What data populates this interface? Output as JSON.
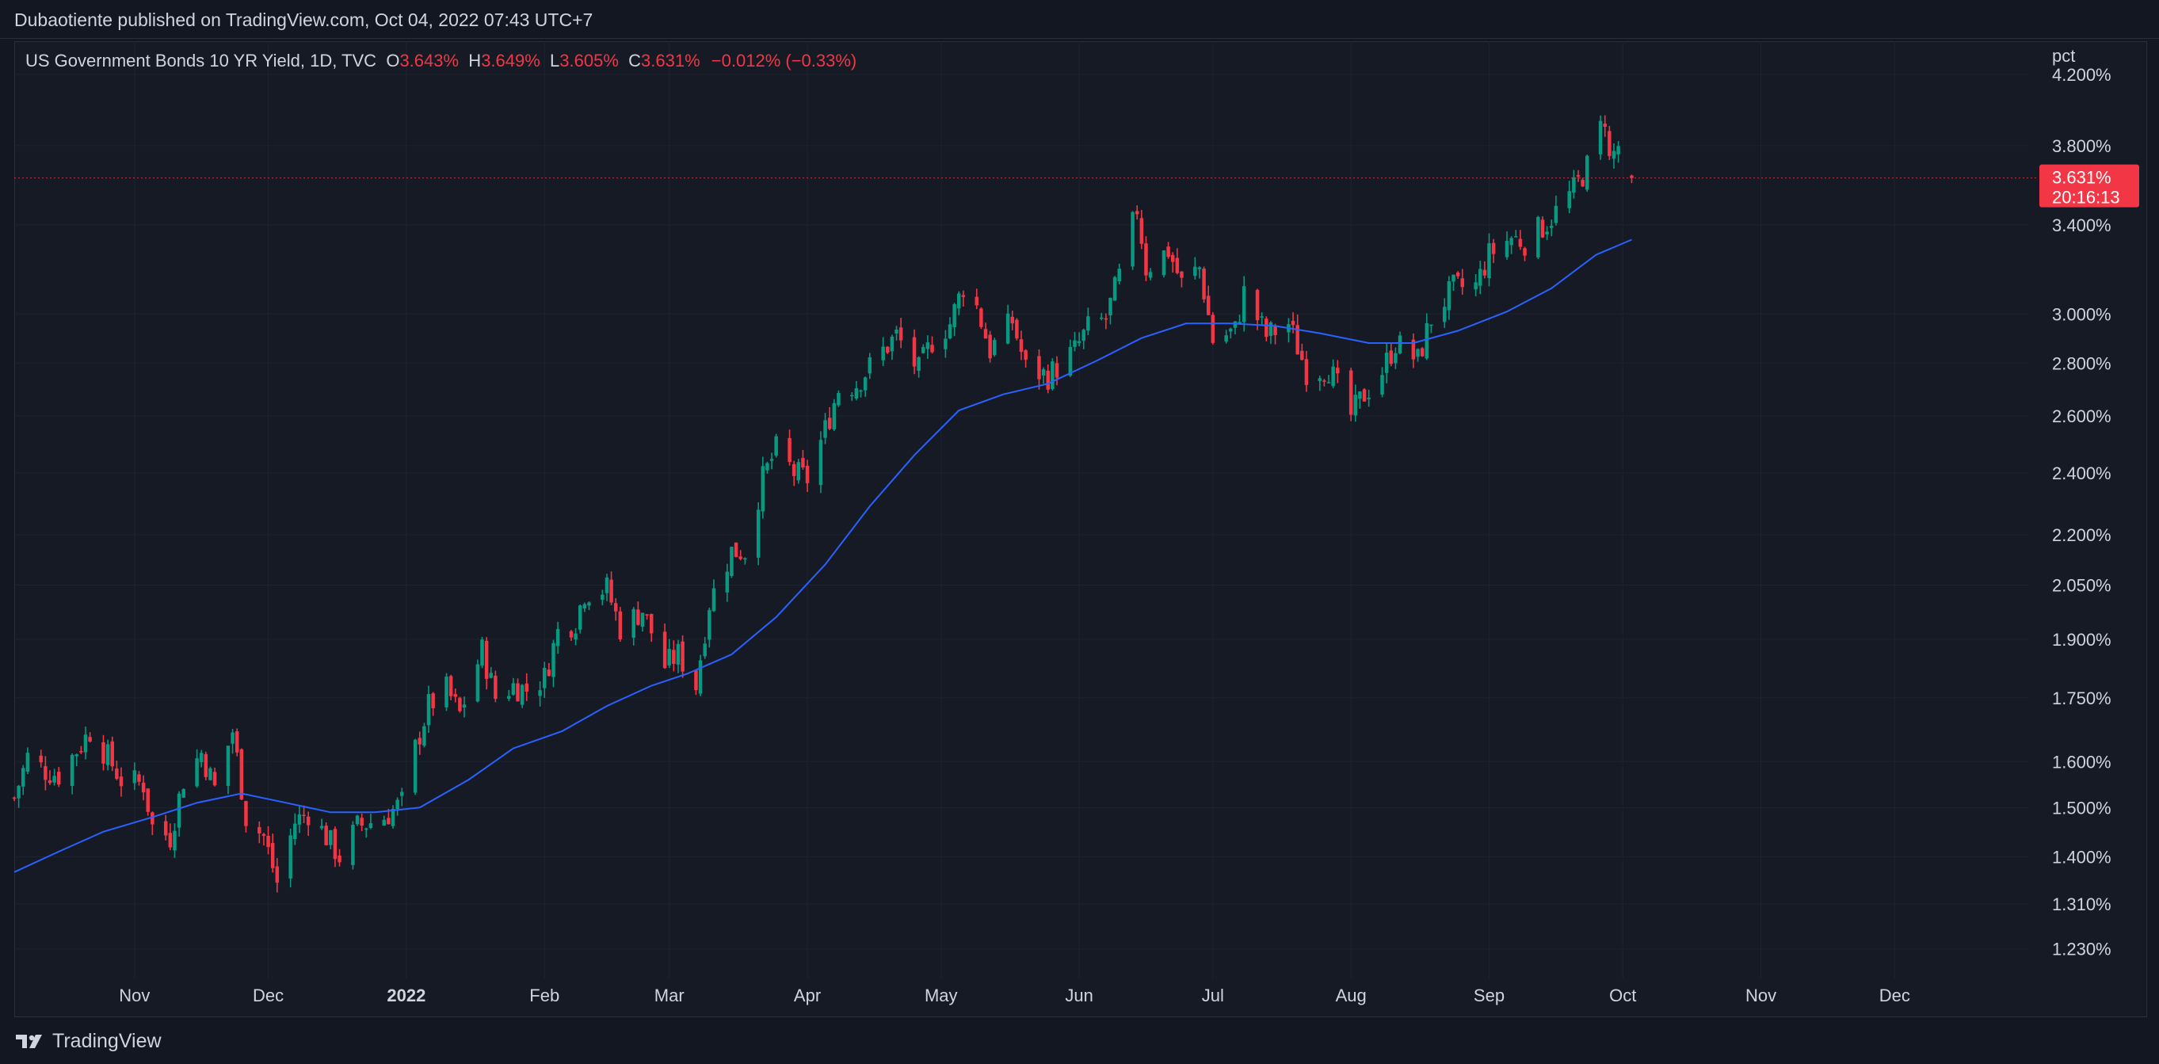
{
  "header": {
    "publisher": "Dubaotiente published on TradingView.com, Oct 04, 2022 07:43 UTC+7"
  },
  "legend": {
    "symbol": "US Government Bonds 10 YR Yield, 1D, TVC",
    "open_label": "O",
    "open": "3.643%",
    "high_label": "H",
    "high": "3.649%",
    "low_label": "L",
    "low": "3.605%",
    "close_label": "C",
    "close": "3.631%",
    "change": "−0.012% (−0.33%)"
  },
  "axis": {
    "unit": "pct"
  },
  "price_badge": {
    "price": "3.631%",
    "countdown": "20:16:13"
  },
  "footer": {
    "brand": "TradingView"
  },
  "colors": {
    "background": "#131722",
    "up": "#089981",
    "down": "#f23645",
    "moving_average": "#2962ff",
    "grid": "#1f2330",
    "text": "#d1d4dc"
  },
  "chart_data": {
    "type": "candlestick",
    "title": "US Government Bonds 10 YR Yield, 1D, TVC",
    "log_scale": true,
    "grid": true,
    "y_ticks": [
      "1.230%",
      "1.310%",
      "1.400%",
      "1.500%",
      "1.600%",
      "1.750%",
      "1.900%",
      "2.050%",
      "2.200%",
      "2.400%",
      "2.600%",
      "2.800%",
      "3.000%",
      "3.400%",
      "3.800%",
      "4.200%"
    ],
    "y_tick_values": [
      1.23,
      1.31,
      1.4,
      1.5,
      1.6,
      1.75,
      1.9,
      2.05,
      2.2,
      2.4,
      2.6,
      2.8,
      3.0,
      3.4,
      3.8,
      4.2
    ],
    "x_tick_labels": [
      "Nov",
      "Dec",
      "2022",
      "Feb",
      "Mar",
      "Apr",
      "May",
      "Jun",
      "Jul",
      "Aug",
      "Sep",
      "Oct",
      "Nov",
      "Dec"
    ],
    "x_tick_dates": [
      "2021-11-01",
      "2021-12-01",
      "2022-01-01",
      "2022-02-01",
      "2022-03-01",
      "2022-04-01",
      "2022-05-01",
      "2022-06-01",
      "2022-07-01",
      "2022-08-01",
      "2022-09-01",
      "2022-10-01",
      "2022-11-01",
      "2022-12-01"
    ],
    "x_range": [
      "2021-10-05",
      "2022-12-31"
    ],
    "y_range": [
      1.18,
      4.4
    ],
    "last_price": 3.631,
    "close_path": [
      [
        "2021-10-05",
        1.52
      ],
      [
        "2021-10-08",
        1.61
      ],
      [
        "2021-10-12",
        1.58
      ],
      [
        "2021-10-15",
        1.57
      ],
      [
        "2021-10-20",
        1.64
      ],
      [
        "2021-10-22",
        1.67
      ],
      [
        "2021-10-26",
        1.61
      ],
      [
        "2021-10-29",
        1.56
      ],
      [
        "2021-11-03",
        1.55
      ],
      [
        "2021-11-05",
        1.46
      ],
      [
        "2021-11-09",
        1.44
      ],
      [
        "2021-11-12",
        1.56
      ],
      [
        "2021-11-16",
        1.62
      ],
      [
        "2021-11-19",
        1.54
      ],
      [
        "2021-11-23",
        1.67
      ],
      [
        "2021-11-26",
        1.48
      ],
      [
        "2021-11-30",
        1.44
      ],
      [
        "2021-12-03",
        1.35
      ],
      [
        "2021-12-07",
        1.47
      ],
      [
        "2021-12-10",
        1.49
      ],
      [
        "2021-12-14",
        1.44
      ],
      [
        "2021-12-17",
        1.4
      ],
      [
        "2021-12-21",
        1.46
      ],
      [
        "2021-12-27",
        1.48
      ],
      [
        "2021-12-31",
        1.51
      ],
      [
        "2022-01-03",
        1.63
      ],
      [
        "2022-01-06",
        1.73
      ],
      [
        "2022-01-10",
        1.77
      ],
      [
        "2022-01-13",
        1.71
      ],
      [
        "2022-01-18",
        1.87
      ],
      [
        "2022-01-21",
        1.75
      ],
      [
        "2022-01-25",
        1.78
      ],
      [
        "2022-01-28",
        1.77
      ],
      [
        "2022-02-01",
        1.8
      ],
      [
        "2022-02-04",
        1.92
      ],
      [
        "2022-02-08",
        1.95
      ],
      [
        "2022-02-10",
        2.03
      ],
      [
        "2022-02-15",
        2.04
      ],
      [
        "2022-02-18",
        1.93
      ],
      [
        "2022-02-23",
        1.98
      ],
      [
        "2022-02-28",
        1.83
      ],
      [
        "2022-03-03",
        1.86
      ],
      [
        "2022-03-07",
        1.78
      ],
      [
        "2022-03-10",
        2.0
      ],
      [
        "2022-03-15",
        2.15
      ],
      [
        "2022-03-18",
        2.15
      ],
      [
        "2022-03-22",
        2.38
      ],
      [
        "2022-03-25",
        2.48
      ],
      [
        "2022-03-29",
        2.4
      ],
      [
        "2022-04-01",
        2.38
      ],
      [
        "2022-04-05",
        2.55
      ],
      [
        "2022-04-08",
        2.7
      ],
      [
        "2022-04-12",
        2.72
      ],
      [
        "2022-04-18",
        2.85
      ],
      [
        "2022-04-21",
        2.91
      ],
      [
        "2022-04-26",
        2.77
      ],
      [
        "2022-04-29",
        2.89
      ],
      [
        "2022-05-03",
        2.96
      ],
      [
        "2022-05-06",
        3.12
      ],
      [
        "2022-05-09",
        3.03
      ],
      [
        "2022-05-12",
        2.85
      ],
      [
        "2022-05-17",
        2.97
      ],
      [
        "2022-05-20",
        2.78
      ],
      [
        "2022-05-25",
        2.75
      ],
      [
        "2022-05-31",
        2.85
      ],
      [
        "2022-06-03",
        2.94
      ],
      [
        "2022-06-07",
        2.98
      ],
      [
        "2022-06-10",
        3.16
      ],
      [
        "2022-06-14",
        3.48
      ],
      [
        "2022-06-16",
        3.2
      ],
      [
        "2022-06-21",
        3.28
      ],
      [
        "2022-06-24",
        3.13
      ],
      [
        "2022-06-28",
        3.2
      ],
      [
        "2022-07-01",
        2.89
      ],
      [
        "2022-07-06",
        2.93
      ],
      [
        "2022-07-08",
        3.09
      ],
      [
        "2022-07-13",
        2.91
      ],
      [
        "2022-07-18",
        2.96
      ],
      [
        "2022-07-22",
        2.77
      ],
      [
        "2022-07-27",
        2.78
      ],
      [
        "2022-08-01",
        2.6
      ],
      [
        "2022-08-04",
        2.68
      ],
      [
        "2022-08-08",
        2.77
      ],
      [
        "2022-08-11",
        2.88
      ],
      [
        "2022-08-16",
        2.81
      ],
      [
        "2022-08-19",
        2.98
      ],
      [
        "2022-08-24",
        3.11
      ],
      [
        "2022-08-29",
        3.12
      ],
      [
        "2022-09-01",
        3.26
      ],
      [
        "2022-09-06",
        3.34
      ],
      [
        "2022-09-09",
        3.32
      ],
      [
        "2022-09-14",
        3.41
      ],
      [
        "2022-09-20",
        3.57
      ],
      [
        "2022-09-23",
        3.69
      ],
      [
        "2022-09-27",
        3.96
      ],
      [
        "2022-09-28",
        3.72
      ],
      [
        "2022-09-30",
        3.8
      ],
      [
        "2022-10-03",
        3.631
      ]
    ],
    "moving_average": [
      [
        "2021-10-05",
        1.37
      ],
      [
        "2021-10-15",
        1.41
      ],
      [
        "2021-10-25",
        1.45
      ],
      [
        "2021-11-05",
        1.48
      ],
      [
        "2021-11-15",
        1.51
      ],
      [
        "2021-11-25",
        1.53
      ],
      [
        "2021-12-05",
        1.51
      ],
      [
        "2021-12-15",
        1.49
      ],
      [
        "2021-12-25",
        1.49
      ],
      [
        "2022-01-04",
        1.5
      ],
      [
        "2022-01-15",
        1.56
      ],
      [
        "2022-01-25",
        1.63
      ],
      [
        "2022-02-05",
        1.67
      ],
      [
        "2022-02-15",
        1.73
      ],
      [
        "2022-02-25",
        1.78
      ],
      [
        "2022-03-05",
        1.81
      ],
      [
        "2022-03-15",
        1.86
      ],
      [
        "2022-03-25",
        1.96
      ],
      [
        "2022-04-05",
        2.11
      ],
      [
        "2022-04-15",
        2.29
      ],
      [
        "2022-04-25",
        2.46
      ],
      [
        "2022-05-05",
        2.62
      ],
      [
        "2022-05-15",
        2.68
      ],
      [
        "2022-05-25",
        2.72
      ],
      [
        "2022-06-05",
        2.81
      ],
      [
        "2022-06-15",
        2.9
      ],
      [
        "2022-06-25",
        2.96
      ],
      [
        "2022-07-05",
        2.96
      ],
      [
        "2022-07-15",
        2.95
      ],
      [
        "2022-07-25",
        2.92
      ],
      [
        "2022-08-05",
        2.88
      ],
      [
        "2022-08-15",
        2.88
      ],
      [
        "2022-08-25",
        2.93
      ],
      [
        "2022-09-05",
        3.01
      ],
      [
        "2022-09-15",
        3.11
      ],
      [
        "2022-09-25",
        3.26
      ],
      [
        "2022-10-03",
        3.33
      ]
    ]
  }
}
